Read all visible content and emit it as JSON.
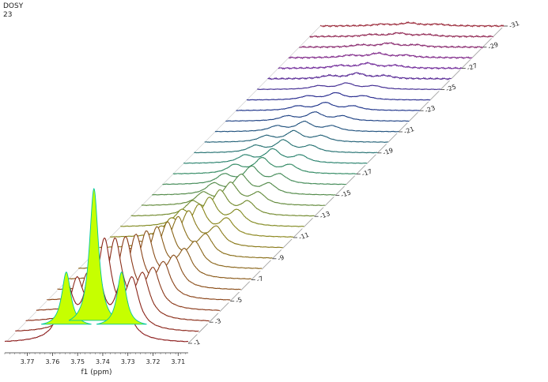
{
  "header": {
    "experiment": "DOSY",
    "trace_number": "23"
  },
  "chart_data": {
    "type": "stacked-spectra",
    "xlabel": "f1 (ppm)",
    "x_ticks": [
      3.77,
      3.76,
      3.75,
      3.74,
      3.73,
      3.72,
      3.71
    ],
    "xlim": [
      3.779,
      3.706
    ],
    "trace_labels": [
      1,
      3,
      5,
      7,
      9,
      11,
      13,
      15,
      17,
      19,
      21,
      23,
      25,
      27,
      29,
      31
    ],
    "trace_count": 31,
    "highlighted_trace": 1,
    "peaks_ppm": [
      3.7545,
      3.7435,
      3.7325
    ],
    "peak_relative_heights": [
      0.55,
      1.0,
      0.55
    ],
    "first_trace_peak_height": 1.0,
    "last_trace_peak_height": 0.03,
    "colors": {
      "first_trace": "#8b1a1a",
      "middle_trace": "#2a8a6a",
      "late_trace": "#1b2a8c",
      "last_trace": "#9b2a3a",
      "fill": "#c6ff00",
      "fill_edge": "#00c8a0"
    }
  }
}
